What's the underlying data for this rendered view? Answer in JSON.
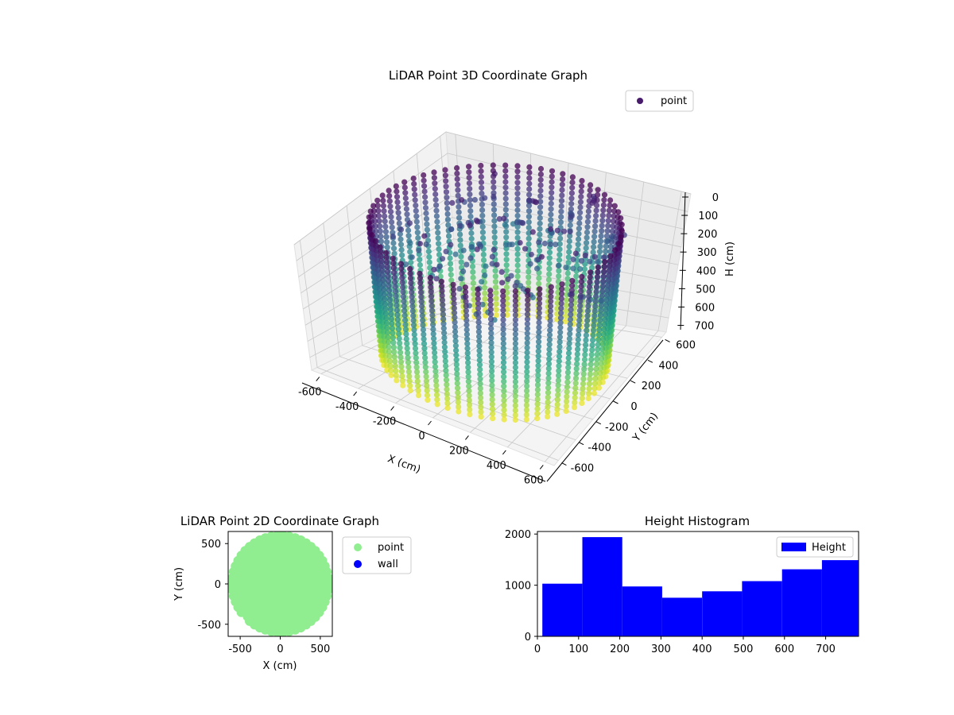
{
  "chart_data": [
    {
      "type": "scatter",
      "subtype": "3d",
      "title": "LiDAR Point 3D Coordinate Graph",
      "xlabel": "X (cm)",
      "ylabel": "Y (cm)",
      "zlabel": "H (cm)",
      "xlim": [
        -650,
        650
      ],
      "ylim": [
        -650,
        650
      ],
      "zlim": [
        0,
        780
      ],
      "z_inverted": true,
      "x_ticks": [
        -600,
        -400,
        -200,
        0,
        200,
        400,
        600
      ],
      "y_ticks": [
        -600,
        -400,
        -200,
        0,
        200,
        400,
        600
      ],
      "z_ticks": [
        0,
        100,
        200,
        300,
        400,
        500,
        600,
        700
      ],
      "colormap": "viridis",
      "legend": {
        "entries": [
          "point"
        ],
        "placement": "top-right",
        "marker_color": "#481a6c"
      },
      "grid": true,
      "description_of_points": "Dense ring of vertical point columns on a cylinder-like wall, radius about 600 cm, heights 0-780 cm; colour mapped to height",
      "wall_radius": 600,
      "wall_height": [
        0,
        780
      ]
    },
    {
      "type": "scatter",
      "title": "LiDAR Point 2D Coordinate Graph",
      "xlabel": "X (cm)",
      "ylabel": "Y (cm)",
      "xlim": [
        -650,
        650
      ],
      "ylim": [
        -650,
        650
      ],
      "x_ticks": [
        -500,
        0,
        500
      ],
      "y_ticks": [
        -500,
        0,
        500
      ],
      "series": [
        {
          "name": "point",
          "color": "#90ee90"
        },
        {
          "name": "wall",
          "color": "#0000ff"
        }
      ],
      "legend": {
        "placement": "outside-right"
      },
      "grid": false
    },
    {
      "type": "bar",
      "subtype": "histogram",
      "title": "Height Histogram",
      "xlim": [
        0,
        780
      ],
      "ylim": [
        0,
        2050
      ],
      "x_ticks": [
        0,
        100,
        200,
        300,
        400,
        500,
        600,
        700
      ],
      "y_ticks": [
        0,
        1000,
        2000
      ],
      "bins": [
        {
          "x0": 12,
          "x1": 109,
          "value": 1030
        },
        {
          "x0": 109,
          "x1": 206,
          "value": 1940
        },
        {
          "x0": 206,
          "x1": 303,
          "value": 975
        },
        {
          "x0": 303,
          "x1": 400,
          "value": 755
        },
        {
          "x0": 400,
          "x1": 497,
          "value": 880
        },
        {
          "x0": 497,
          "x1": 594,
          "value": 1080
        },
        {
          "x0": 594,
          "x1": 691,
          "value": 1310
        },
        {
          "x0": 691,
          "x1": 788,
          "value": 1490
        }
      ],
      "series": [
        {
          "name": "Height",
          "color": "#0000ff"
        }
      ],
      "legend": {
        "placement": "top-right"
      },
      "grid": false
    }
  ]
}
